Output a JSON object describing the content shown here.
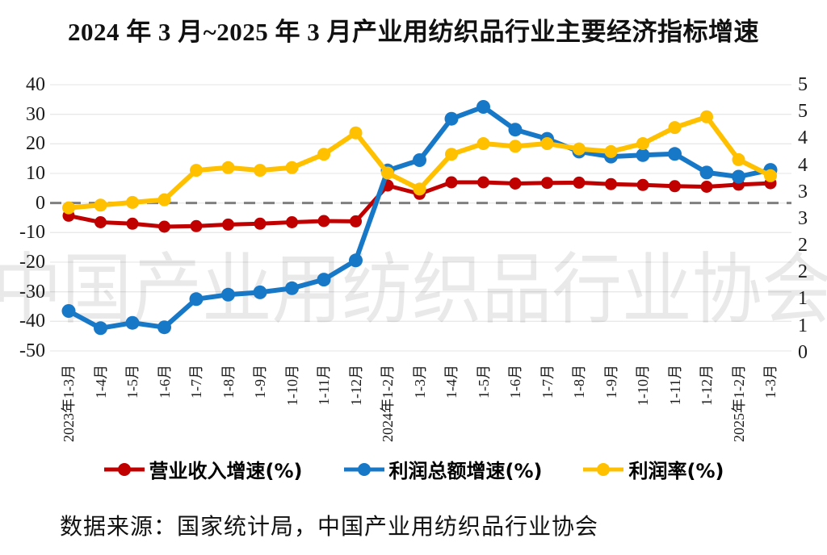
{
  "title": "2024 年 3 月~2025 年 3 月产业用纺织品行业主要经济指标增速",
  "watermark": "中国产业用纺织品行业协会",
  "source": "数据来源：国家统计局，中国产业用纺织品行业协会",
  "colors": {
    "revenue": "#C00000",
    "profit": "#1878C8",
    "margin": "#FFC000",
    "zero_line": "#7F7F7F",
    "gridline": "#E9E9E9",
    "watermark": "#000000",
    "text": "#1A1A1A"
  },
  "chart_data": {
    "type": "line",
    "categories": [
      "2023年1-3月",
      "1-4月",
      "1-5月",
      "1-6月",
      "1-7月",
      "1-8月",
      "1-9月",
      "1-10月",
      "1-11月",
      "1-12月",
      "2024年1-2月",
      "1-3月",
      "1-4月",
      "1-5月",
      "1-6月",
      "1-7月",
      "1-8月",
      "1-9月",
      "1-10月",
      "1-11月",
      "1-12月",
      "2025年1-2月",
      "1-3月"
    ],
    "series": [
      {
        "name": "营业收入增速(%)",
        "color_key": "revenue",
        "axis": "left",
        "values": [
          -4.3,
          -6.5,
          -7.0,
          -8.0,
          -7.8,
          -7.3,
          -7.0,
          -6.5,
          -6.1,
          -6.2,
          5.9,
          3.1,
          7.0,
          7.0,
          6.6,
          6.8,
          6.9,
          6.4,
          6.1,
          5.7,
          5.5,
          6.2,
          6.7
        ]
      },
      {
        "name": "利润总额增速(%)",
        "color_key": "profit",
        "axis": "left",
        "values": [
          -36.5,
          -42.3,
          -40.5,
          -42.0,
          -32.5,
          -31.0,
          -30.2,
          -28.8,
          -25.9,
          -19.4,
          11.0,
          14.5,
          28.5,
          32.5,
          24.8,
          21.7,
          17.4,
          15.7,
          16.2,
          16.6,
          10.3,
          8.9,
          11.2
        ]
      },
      {
        "name": "利润率(%)",
        "color_key": "margin",
        "axis": "right",
        "values": [
          2.7,
          2.75,
          2.8,
          2.85,
          3.4,
          3.45,
          3.4,
          3.45,
          3.7,
          4.1,
          3.35,
          3.05,
          3.7,
          3.9,
          3.85,
          3.9,
          3.8,
          3.75,
          3.9,
          4.2,
          4.4,
          3.6,
          3.3
        ]
      }
    ],
    "left_axis": {
      "min": -50,
      "max": 40,
      "tick_labels": [
        "40",
        "30",
        "20",
        "10",
        "0",
        "-10",
        "-20",
        "-30",
        "-40",
        "-50"
      ]
    },
    "right_axis": {
      "min": 0,
      "max": 5,
      "step": 0.5,
      "tick_labels": [
        "5",
        "5",
        "4",
        "4",
        "3",
        "3",
        "2",
        "2",
        "1",
        "1",
        "0"
      ]
    },
    "grid": true,
    "zero_line_dashed": true,
    "legend_position": "bottom"
  }
}
